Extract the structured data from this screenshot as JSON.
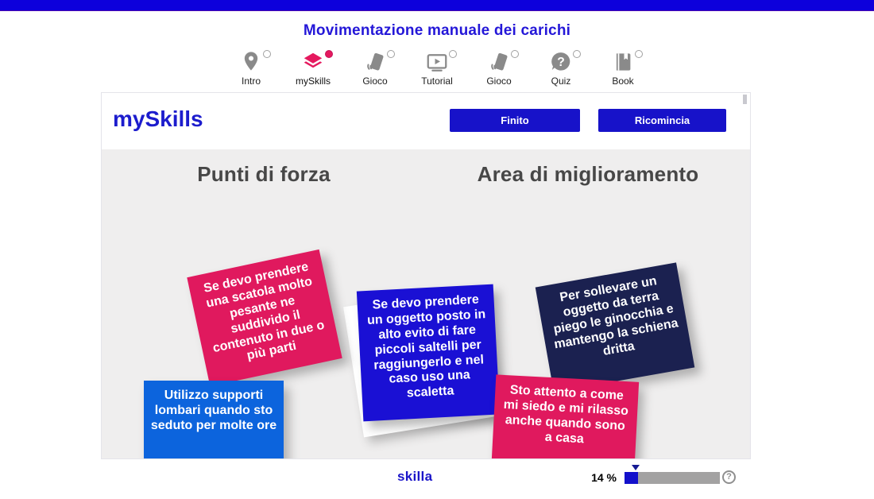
{
  "page": {
    "title": "Movimentazione manuale dei carichi",
    "title_color": "#2417d8"
  },
  "topbar": {
    "color": "#0d00dc"
  },
  "nav": {
    "active_color": "#e5195e",
    "inactive_icon_color": "#8a8a8a",
    "items": [
      {
        "label": "Intro",
        "icon": "map-pin-icon",
        "selected": false
      },
      {
        "label": "mySkills",
        "icon": "layers-icon",
        "selected": true
      },
      {
        "label": "Gioco",
        "icon": "tilted-phone-icon",
        "selected": false
      },
      {
        "label": "Tutorial",
        "icon": "video-player-icon",
        "selected": false
      },
      {
        "label": "Gioco",
        "icon": "tilted-phone-icon",
        "selected": false
      },
      {
        "label": "Quiz",
        "icon": "question-bubble-icon",
        "selected": false
      },
      {
        "label": "Book",
        "icon": "book-icon",
        "selected": false
      }
    ]
  },
  "panel": {
    "title": "mySkills",
    "title_color": "#1c1ccd",
    "button_color": "#1712c9",
    "buttons": [
      {
        "label": "Finito"
      },
      {
        "label": "Ricomincia"
      }
    ],
    "columns": [
      {
        "heading": "Punti di forza"
      },
      {
        "heading": "Area di miglioramento"
      }
    ],
    "notes": [
      {
        "column": "Punti di forza",
        "color": "#e0195e",
        "text": "Se devo prendere una scatola molto pesante ne suddivido il contenuto in due o più parti"
      },
      {
        "column": "Punti di forza",
        "color": "#1a10d4",
        "text": "Se devo prendere un oggetto posto in alto evito di fare piccoli saltelli per raggiungerlo e nel caso uso una scaletta"
      },
      {
        "column": "Area di miglioramento",
        "color": "#1b2150",
        "text": "Per sollevare un oggetto da terra piego le ginocchia e mantengo la schiena dritta"
      },
      {
        "column": "Punti di forza",
        "color": "#0c64dd",
        "text": "Utilizzo supporti lombari quando sto seduto per molte ore"
      },
      {
        "column": "Area di miglioramento",
        "color": "#e0195e",
        "text": "Sto attento a come mi siedo e mi rilasso anche quando sono a casa"
      }
    ]
  },
  "footer": {
    "logo": "skilla",
    "logo_color": "#1b15c9",
    "progress_label": "14 %",
    "progress_percent": 14,
    "progress_fill_color": "#1310cb",
    "help_glyph": "?",
    "help_icon": "question-mark-icon"
  }
}
